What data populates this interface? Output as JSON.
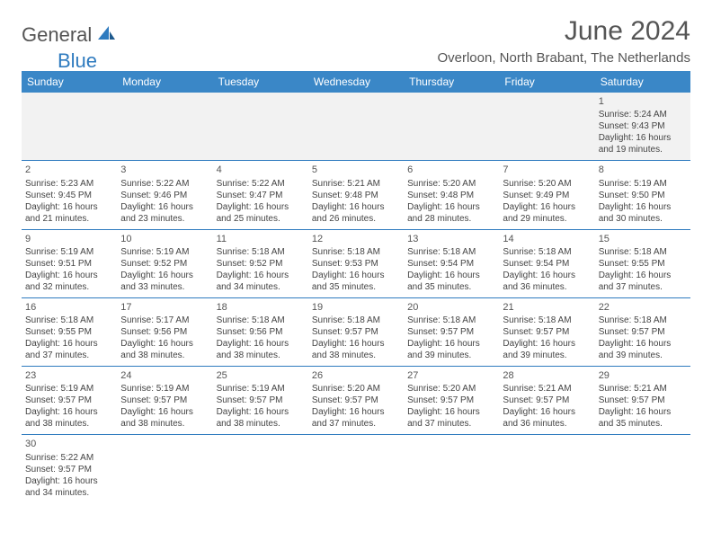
{
  "brand": {
    "general": "General",
    "blue": "Blue"
  },
  "title": "June 2024",
  "location": "Overloon, North Brabant, The Netherlands",
  "colors": {
    "header_bg": "#3a87c7",
    "border": "#2f7bbf",
    "text": "#444444",
    "title_text": "#555555",
    "logo_blue": "#2f7bbf"
  },
  "day_names": [
    "Sunday",
    "Monday",
    "Tuesday",
    "Wednesday",
    "Thursday",
    "Friday",
    "Saturday"
  ],
  "weeks": [
    [
      null,
      null,
      null,
      null,
      null,
      null,
      {
        "d": "1",
        "sr": "5:24 AM",
        "ss": "9:43 PM",
        "dl": "16 hours and 19 minutes."
      }
    ],
    [
      {
        "d": "2",
        "sr": "5:23 AM",
        "ss": "9:45 PM",
        "dl": "16 hours and 21 minutes."
      },
      {
        "d": "3",
        "sr": "5:22 AM",
        "ss": "9:46 PM",
        "dl": "16 hours and 23 minutes."
      },
      {
        "d": "4",
        "sr": "5:22 AM",
        "ss": "9:47 PM",
        "dl": "16 hours and 25 minutes."
      },
      {
        "d": "5",
        "sr": "5:21 AM",
        "ss": "9:48 PM",
        "dl": "16 hours and 26 minutes."
      },
      {
        "d": "6",
        "sr": "5:20 AM",
        "ss": "9:48 PM",
        "dl": "16 hours and 28 minutes."
      },
      {
        "d": "7",
        "sr": "5:20 AM",
        "ss": "9:49 PM",
        "dl": "16 hours and 29 minutes."
      },
      {
        "d": "8",
        "sr": "5:19 AM",
        "ss": "9:50 PM",
        "dl": "16 hours and 30 minutes."
      }
    ],
    [
      {
        "d": "9",
        "sr": "5:19 AM",
        "ss": "9:51 PM",
        "dl": "16 hours and 32 minutes."
      },
      {
        "d": "10",
        "sr": "5:19 AM",
        "ss": "9:52 PM",
        "dl": "16 hours and 33 minutes."
      },
      {
        "d": "11",
        "sr": "5:18 AM",
        "ss": "9:52 PM",
        "dl": "16 hours and 34 minutes."
      },
      {
        "d": "12",
        "sr": "5:18 AM",
        "ss": "9:53 PM",
        "dl": "16 hours and 35 minutes."
      },
      {
        "d": "13",
        "sr": "5:18 AM",
        "ss": "9:54 PM",
        "dl": "16 hours and 35 minutes."
      },
      {
        "d": "14",
        "sr": "5:18 AM",
        "ss": "9:54 PM",
        "dl": "16 hours and 36 minutes."
      },
      {
        "d": "15",
        "sr": "5:18 AM",
        "ss": "9:55 PM",
        "dl": "16 hours and 37 minutes."
      }
    ],
    [
      {
        "d": "16",
        "sr": "5:18 AM",
        "ss": "9:55 PM",
        "dl": "16 hours and 37 minutes."
      },
      {
        "d": "17",
        "sr": "5:17 AM",
        "ss": "9:56 PM",
        "dl": "16 hours and 38 minutes."
      },
      {
        "d": "18",
        "sr": "5:18 AM",
        "ss": "9:56 PM",
        "dl": "16 hours and 38 minutes."
      },
      {
        "d": "19",
        "sr": "5:18 AM",
        "ss": "9:57 PM",
        "dl": "16 hours and 38 minutes."
      },
      {
        "d": "20",
        "sr": "5:18 AM",
        "ss": "9:57 PM",
        "dl": "16 hours and 39 minutes."
      },
      {
        "d": "21",
        "sr": "5:18 AM",
        "ss": "9:57 PM",
        "dl": "16 hours and 39 minutes."
      },
      {
        "d": "22",
        "sr": "5:18 AM",
        "ss": "9:57 PM",
        "dl": "16 hours and 39 minutes."
      }
    ],
    [
      {
        "d": "23",
        "sr": "5:19 AM",
        "ss": "9:57 PM",
        "dl": "16 hours and 38 minutes."
      },
      {
        "d": "24",
        "sr": "5:19 AM",
        "ss": "9:57 PM",
        "dl": "16 hours and 38 minutes."
      },
      {
        "d": "25",
        "sr": "5:19 AM",
        "ss": "9:57 PM",
        "dl": "16 hours and 38 minutes."
      },
      {
        "d": "26",
        "sr": "5:20 AM",
        "ss": "9:57 PM",
        "dl": "16 hours and 37 minutes."
      },
      {
        "d": "27",
        "sr": "5:20 AM",
        "ss": "9:57 PM",
        "dl": "16 hours and 37 minutes."
      },
      {
        "d": "28",
        "sr": "5:21 AM",
        "ss": "9:57 PM",
        "dl": "16 hours and 36 minutes."
      },
      {
        "d": "29",
        "sr": "5:21 AM",
        "ss": "9:57 PM",
        "dl": "16 hours and 35 minutes."
      }
    ],
    [
      {
        "d": "30",
        "sr": "5:22 AM",
        "ss": "9:57 PM",
        "dl": "16 hours and 34 minutes."
      },
      null,
      null,
      null,
      null,
      null,
      null
    ]
  ],
  "labels": {
    "sunrise": "Sunrise:",
    "sunset": "Sunset:",
    "daylight": "Daylight:"
  }
}
